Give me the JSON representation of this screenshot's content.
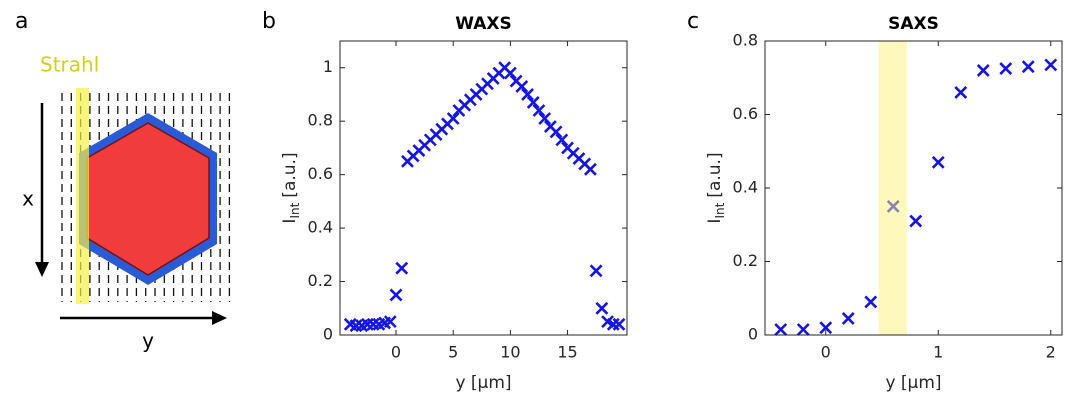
{
  "schematic": {
    "panel_label": "a",
    "beam_label": "Strahl",
    "x_label": "x",
    "y_label": "y"
  },
  "chart_data": [
    {
      "type": "scatter",
      "panel_label": "b",
      "title": "WAXS",
      "ylabel": "I",
      "ylabel_sub": "Int",
      "ylabel_unit": "[a.u.]",
      "xlabel": "y [µm]",
      "x": [
        -4,
        -3.5,
        -3,
        -2.5,
        -2,
        -1.5,
        -1,
        -0.5,
        0,
        0.5,
        1,
        1.5,
        2,
        2.5,
        3,
        3.5,
        4,
        4.5,
        5,
        5.5,
        6,
        6.5,
        7,
        7.5,
        8,
        8.5,
        9,
        9.5,
        10,
        10.5,
        11,
        11.5,
        12,
        12.5,
        13,
        13.5,
        14,
        14.5,
        15,
        15.5,
        16,
        16.5,
        17,
        17.5,
        18,
        18.5,
        19,
        19.5
      ],
      "values": [
        0.04,
        0.035,
        0.035,
        0.04,
        0.04,
        0.04,
        0.045,
        0.05,
        0.15,
        0.25,
        0.65,
        0.67,
        0.69,
        0.71,
        0.73,
        0.75,
        0.77,
        0.79,
        0.81,
        0.84,
        0.86,
        0.88,
        0.9,
        0.92,
        0.94,
        0.96,
        0.98,
        1.0,
        0.98,
        0.95,
        0.93,
        0.9,
        0.87,
        0.84,
        0.81,
        0.78,
        0.76,
        0.73,
        0.7,
        0.68,
        0.66,
        0.64,
        0.62,
        0.24,
        0.1,
        0.05,
        0.04,
        0.04
      ],
      "color": "#1414e6",
      "xlim": [
        -4.9,
        20.2
      ],
      "ylim": [
        0,
        1.1
      ],
      "xticks": [
        0,
        5,
        10,
        15
      ],
      "yticks": [
        0,
        0.2,
        0.4,
        0.6,
        0.8,
        1
      ]
    },
    {
      "type": "scatter",
      "panel_label": "c",
      "title": "SAXS",
      "ylabel": "I",
      "ylabel_sub": "Int",
      "ylabel_unit": "[a.u.]",
      "xlabel": "y [µm]",
      "x": [
        -0.4,
        -0.2,
        0,
        0.2,
        0.4,
        0.6,
        0.8,
        1.0,
        1.2,
        1.4,
        1.6,
        1.8,
        2.0
      ],
      "values": [
        0.015,
        0.015,
        0.02,
        0.045,
        0.09,
        0.35,
        0.31,
        0.47,
        0.66,
        0.72,
        0.725,
        0.73,
        0.735
      ],
      "color": "#1414e6",
      "highlight_band": [
        0.47,
        0.72
      ],
      "highlight_color": "#fff27a",
      "xlim": [
        -0.54,
        2.1
      ],
      "ylim": [
        0,
        0.8
      ],
      "xticks": [
        0,
        1,
        2
      ],
      "yticks": [
        0,
        0.2,
        0.4,
        0.6,
        0.8
      ]
    }
  ]
}
